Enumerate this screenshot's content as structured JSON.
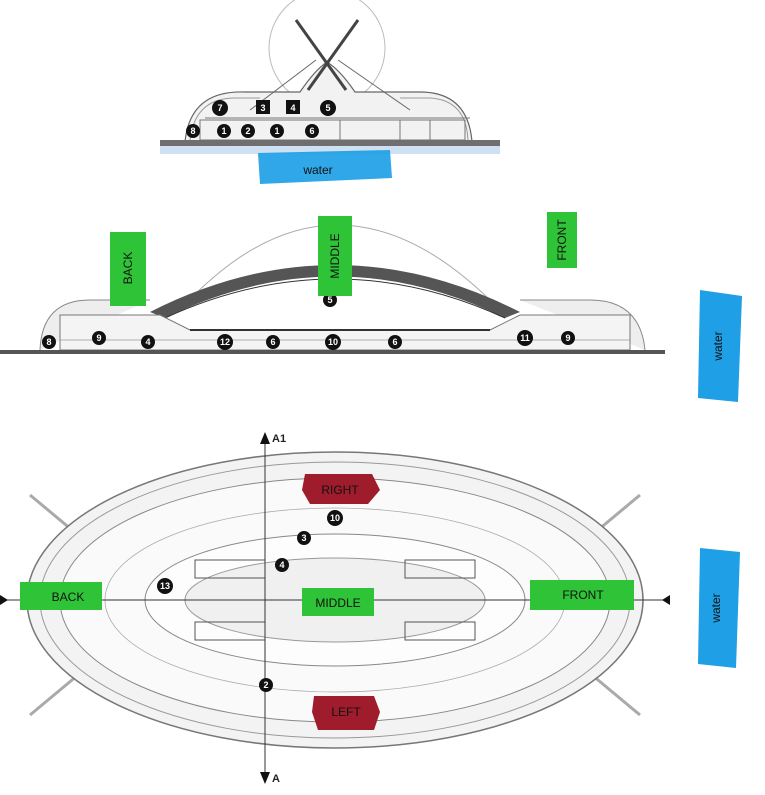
{
  "section_view": {
    "water": "water",
    "numbers": [
      "7",
      "3",
      "4",
      "5",
      "8",
      "1",
      "2",
      "1",
      "6"
    ]
  },
  "elevation_view": {
    "labels": {
      "back": "BACK",
      "middle": "MIDDLE",
      "front": "FRONT",
      "water": "water"
    },
    "numbers": [
      "5",
      "8",
      "9",
      "4",
      "12",
      "6",
      "10",
      "6",
      "11",
      "9"
    ]
  },
  "plan_view": {
    "labels": {
      "back": "BACK",
      "middle": "MIDDLE",
      "front": "FRONT",
      "right": "RIGHT",
      "left": "LEFT",
      "water": "water"
    },
    "numbers": [
      "10",
      "3",
      "4",
      "13",
      "2"
    ],
    "section_marks": {
      "top": "A1",
      "bottom": "A"
    }
  },
  "colors": {
    "green": "#2fc338",
    "red": "#9e1c2c",
    "blue": "#1e9fe6",
    "line": "#8a8a8a",
    "dark": "#111111"
  }
}
